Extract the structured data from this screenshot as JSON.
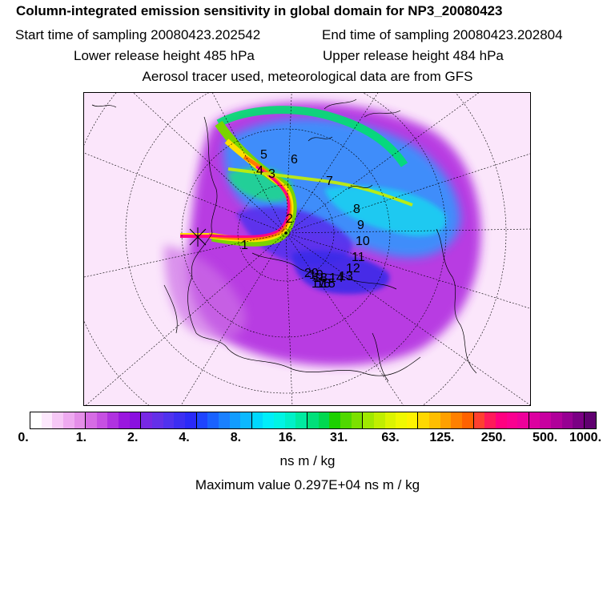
{
  "header": {
    "title": "Column-integrated emission sensitivity in global domain for NP3_20080423",
    "start": "Start time of sampling 20080423.202542",
    "end": "End time of sampling 20080423.202804",
    "lower": "Lower release height  485 hPa",
    "upper": "Upper release height  484 hPa",
    "tracer": "Aerosol tracer used, meteorological data are from GFS"
  },
  "colorbar": {
    "colors": [
      "#ffffff",
      "#fde8fd",
      "#f6c8f6",
      "#eeaaf0",
      "#e48ee8",
      "#d66ce4",
      "#c650e2",
      "#b032e0",
      "#9a18df",
      "#8a10e0",
      "#7828e4",
      "#6430e8",
      "#5032ee",
      "#3c2ef2",
      "#2a2af8",
      "#1e44ff",
      "#1a62ff",
      "#1a80ff",
      "#129cff",
      "#0cb8ff",
      "#00d8ff",
      "#00eefa",
      "#00f4e4",
      "#00f0c8",
      "#00eaa0",
      "#00e07a",
      "#00d850",
      "#1cd000",
      "#50d800",
      "#7ce000",
      "#a0e800",
      "#c0ee00",
      "#dcf400",
      "#f0f800",
      "#fff200",
      "#ffd800",
      "#ffbe00",
      "#ffa000",
      "#ff8000",
      "#ff6200",
      "#ff4030",
      "#ff1a5a",
      "#ff0080",
      "#fa0090",
      "#ee009a",
      "#dc00a0",
      "#c800a0",
      "#b0009a",
      "#960092",
      "#7a0084",
      "#600070"
    ],
    "ticks": [
      "0.",
      "1.",
      "2.",
      "4.",
      "8.",
      "16.",
      "31.",
      "63.",
      "125.",
      "250.",
      "500.",
      "1000."
    ],
    "unit": "ns m / kg",
    "max_text": "Maximum value  0.297E+04 ns m / kg"
  },
  "map": {
    "day_labels": [
      "1",
      "2",
      "3",
      "4",
      "5",
      "6",
      "7",
      "8",
      "9",
      "10",
      "11",
      "12",
      "13",
      "14",
      "15",
      "16",
      "17",
      "18",
      "19",
      "20"
    ]
  }
}
